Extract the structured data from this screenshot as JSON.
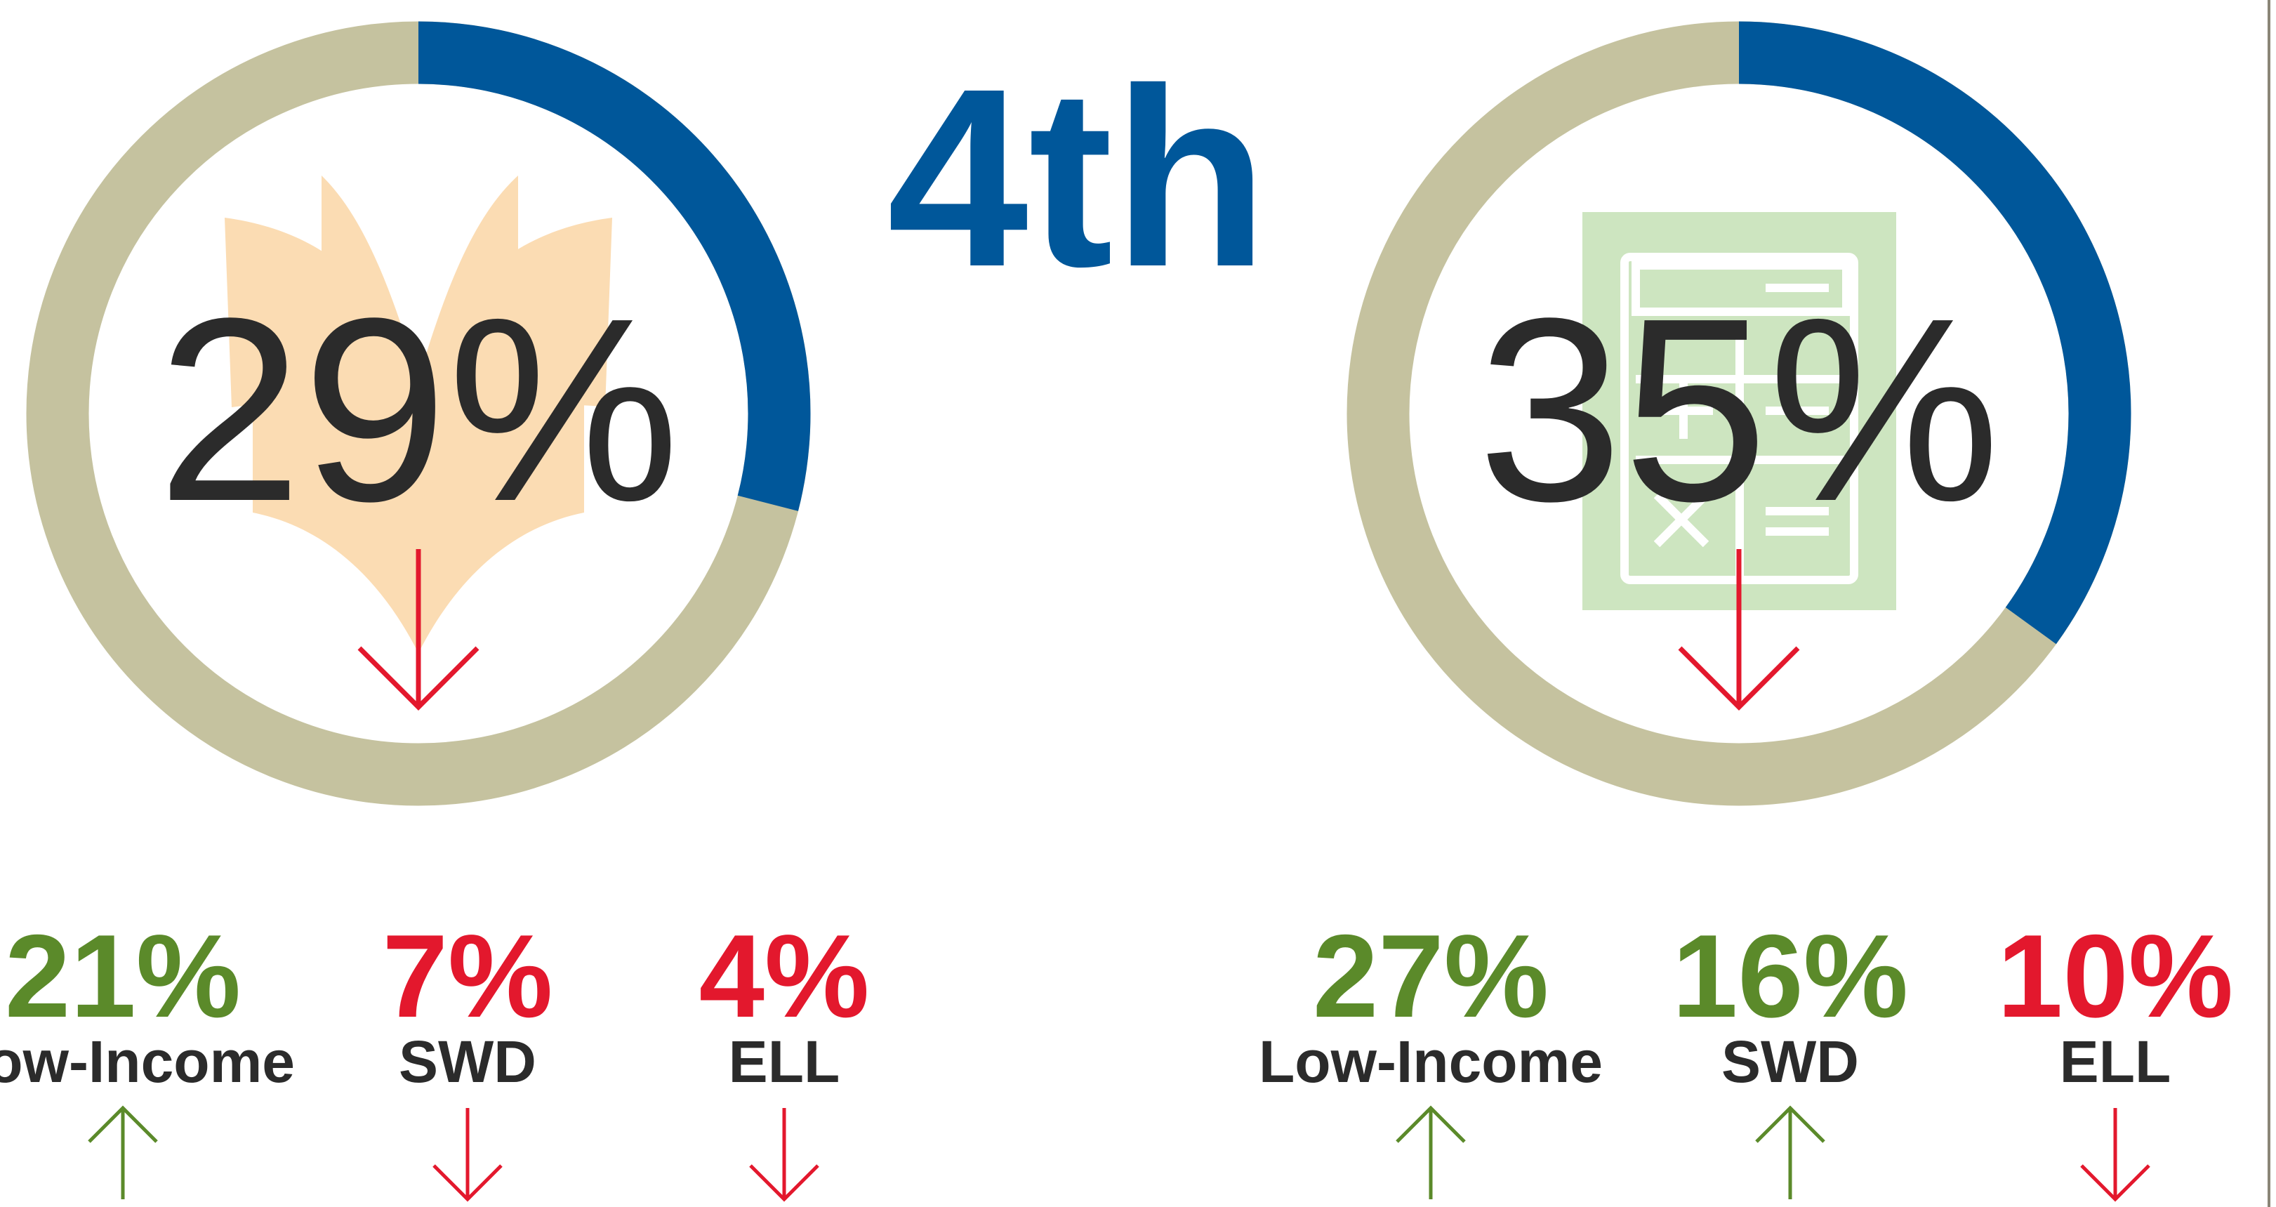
{
  "title": "4th",
  "chart_data": [
    {
      "type": "donut",
      "values": [
        29
      ],
      "value_labels": [
        "29%"
      ],
      "range": [
        0,
        100
      ],
      "colors": {
        "value": "#00579a",
        "rest": "#c5c29f"
      },
      "trend": "down",
      "trend_color": "#e3182d",
      "groups": [
        {
          "label": "Low-Income",
          "value": 21,
          "value_label": "21%",
          "trend": "up",
          "color": "#5b8a2a"
        },
        {
          "label": "SWD",
          "value": 7,
          "value_label": "7%",
          "trend": "down",
          "color": "#e3182d"
        },
        {
          "label": "ELL",
          "value": 4,
          "value_label": "4%",
          "trend": "down",
          "color": "#e3182d"
        }
      ]
    },
    {
      "type": "donut",
      "values": [
        35
      ],
      "value_labels": [
        "35%"
      ],
      "range": [
        0,
        100
      ],
      "colors": {
        "value": "#00579a",
        "rest": "#c5c29f"
      },
      "trend": "down",
      "trend_color": "#e3182d",
      "groups": [
        {
          "label": "Low-Income",
          "value": 27,
          "value_label": "27%",
          "trend": "up",
          "color": "#5b8a2a"
        },
        {
          "label": "SWD",
          "value": 16,
          "value_label": "16%",
          "trend": "up",
          "color": "#5b8a2a"
        },
        {
          "label": "ELL",
          "value": 10,
          "value_label": "10%",
          "trend": "down",
          "color": "#e3182d"
        }
      ]
    }
  ]
}
